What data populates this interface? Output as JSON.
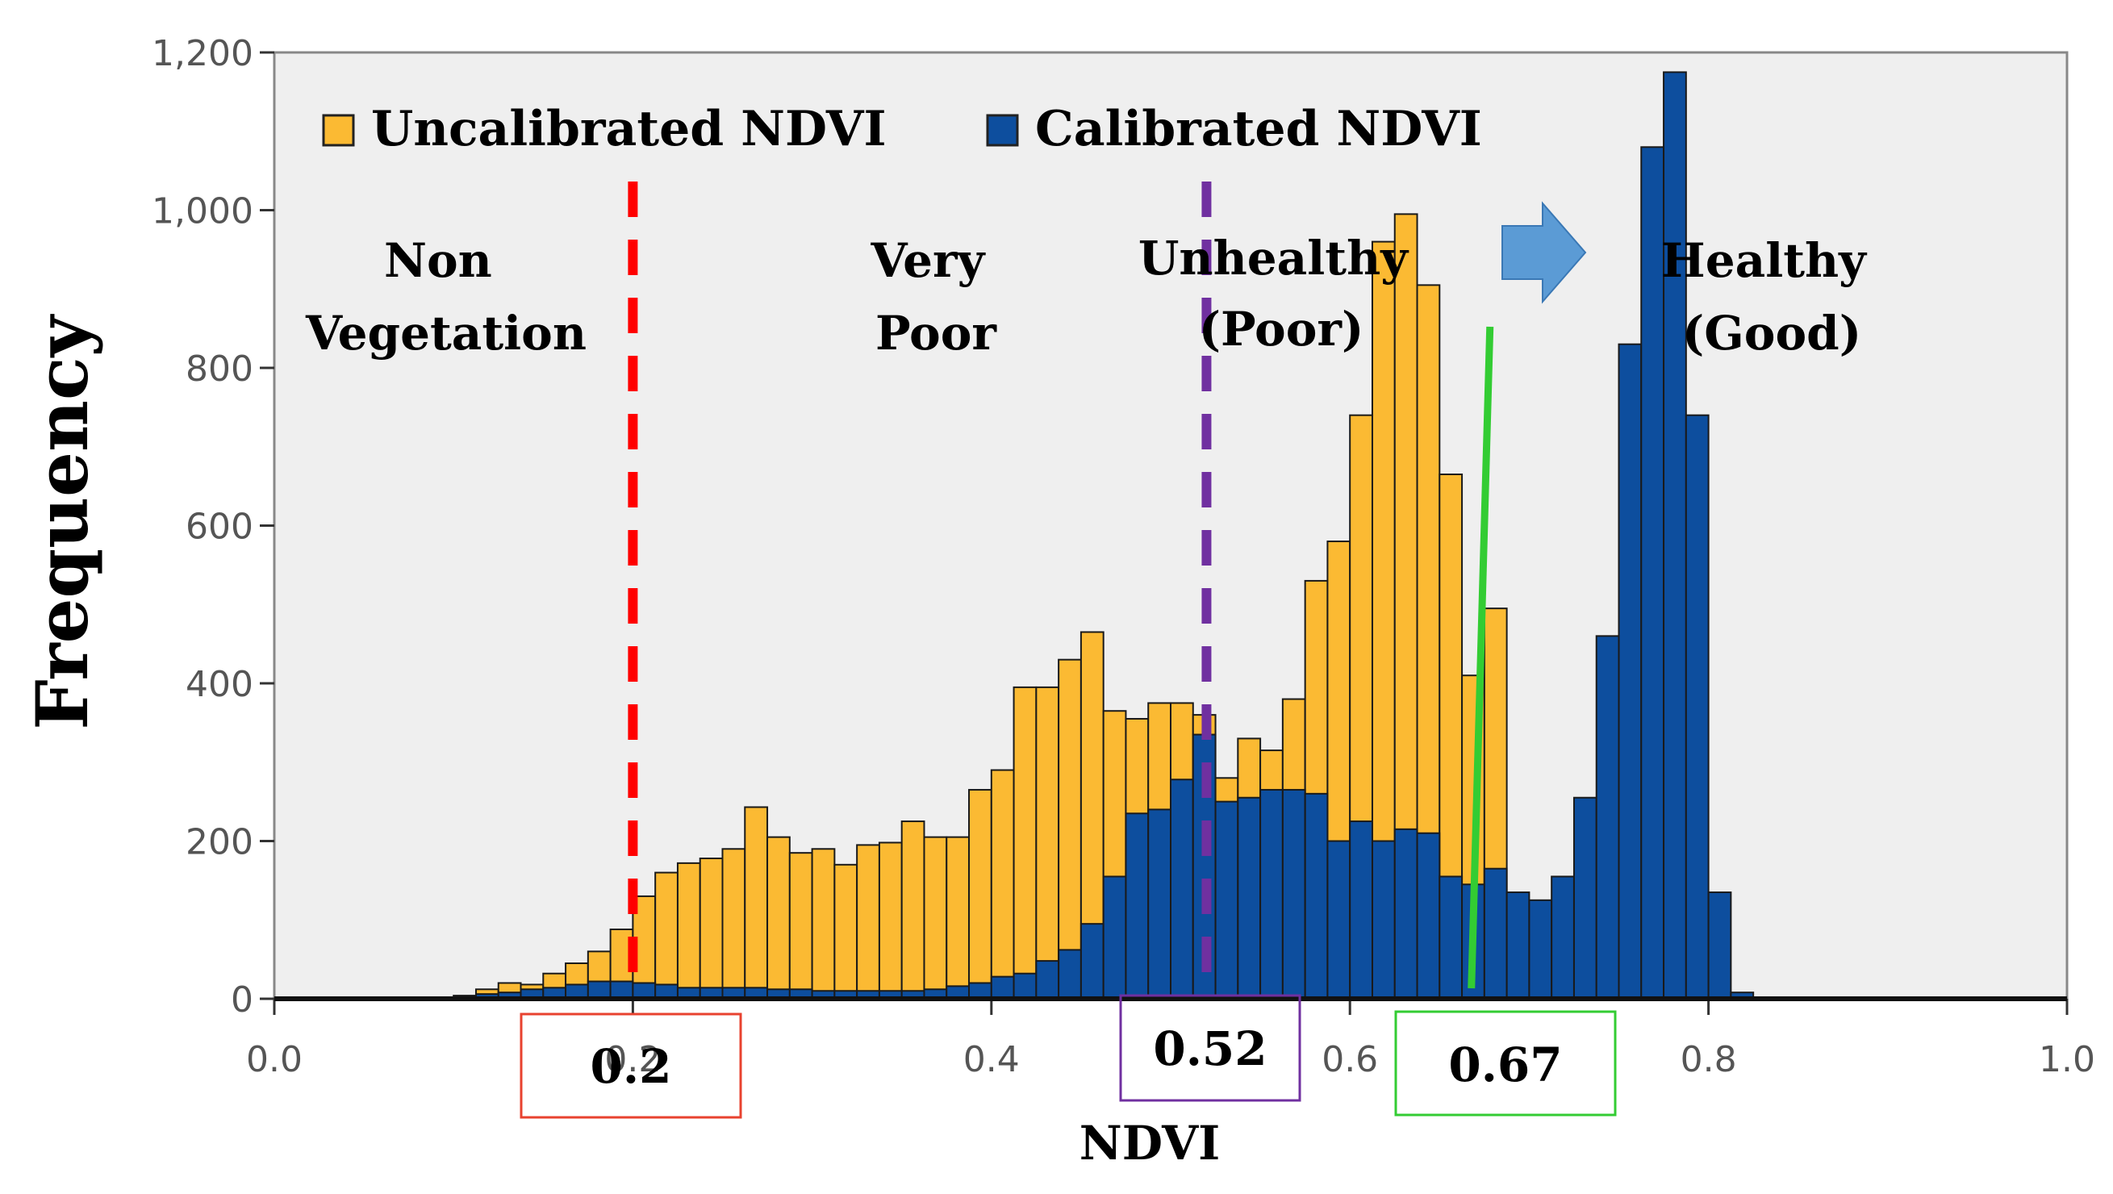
{
  "chart_data": {
    "type": "bar",
    "stacked": "overlaid",
    "title": "",
    "xlabel": "NDVI",
    "ylabel": "Frequency",
    "xlim": [
      0.0,
      1.0
    ],
    "ylim": [
      0,
      1200
    ],
    "x_ticks": [
      "0.0",
      "0.2",
      "0.4",
      "0.6",
      "0.8",
      "1.0"
    ],
    "y_ticks": [
      "0",
      "200",
      "400",
      "600",
      "800",
      "1,000",
      "1,200"
    ],
    "legend_position": "top",
    "bin_width": 0.0125,
    "series": [
      {
        "name": "Uncalibrated NDVI",
        "color": "#FBBA33",
        "bin_start": 0.1125,
        "values": [
          12,
          20,
          18,
          32,
          45,
          60,
          88,
          130,
          160,
          172,
          178,
          190,
          243,
          205,
          185,
          190,
          170,
          195,
          198,
          225,
          205,
          205,
          265,
          290,
          395,
          395,
          430,
          465,
          365,
          355,
          375,
          375,
          360,
          280,
          330,
          315,
          380,
          530,
          580,
          740,
          960,
          995,
          905,
          665,
          410,
          495
        ]
      },
      {
        "name": "Calibrated NDVI",
        "color": "#0D4E9E",
        "bin_start": 0.075,
        "values": [
          2,
          2,
          4,
          6,
          8,
          12,
          14,
          18,
          22,
          22,
          20,
          18,
          14,
          14,
          14,
          14,
          12,
          12,
          10,
          10,
          10,
          10,
          10,
          12,
          16,
          20,
          28,
          32,
          48,
          62,
          95,
          155,
          235,
          240,
          278,
          335,
          250,
          255,
          265,
          265,
          260,
          200,
          225,
          200,
          215,
          210,
          155,
          145,
          165,
          135,
          125,
          155,
          255,
          460,
          830,
          1080,
          1175,
          740,
          135,
          8
        ]
      }
    ],
    "thresholds": [
      {
        "value": 0.2,
        "label": "0.2",
        "style": "dashed",
        "color": "#FF0000"
      },
      {
        "value": 0.52,
        "label": "0.52",
        "style": "dashed",
        "color": "#7030A0"
      },
      {
        "value": 0.67,
        "label": "0.67",
        "style": "solid",
        "color": "#33CC33"
      }
    ],
    "zones": [
      {
        "lines": [
          "Non",
          "Vegetation"
        ]
      },
      {
        "lines": [
          "Very",
          "Poor"
        ]
      },
      {
        "lines": [
          "Unhealthy",
          "(Poor)"
        ]
      },
      {
        "lines": [
          "Healthy",
          "(Good)"
        ]
      }
    ],
    "arrow_color": "#5B9BD5"
  }
}
